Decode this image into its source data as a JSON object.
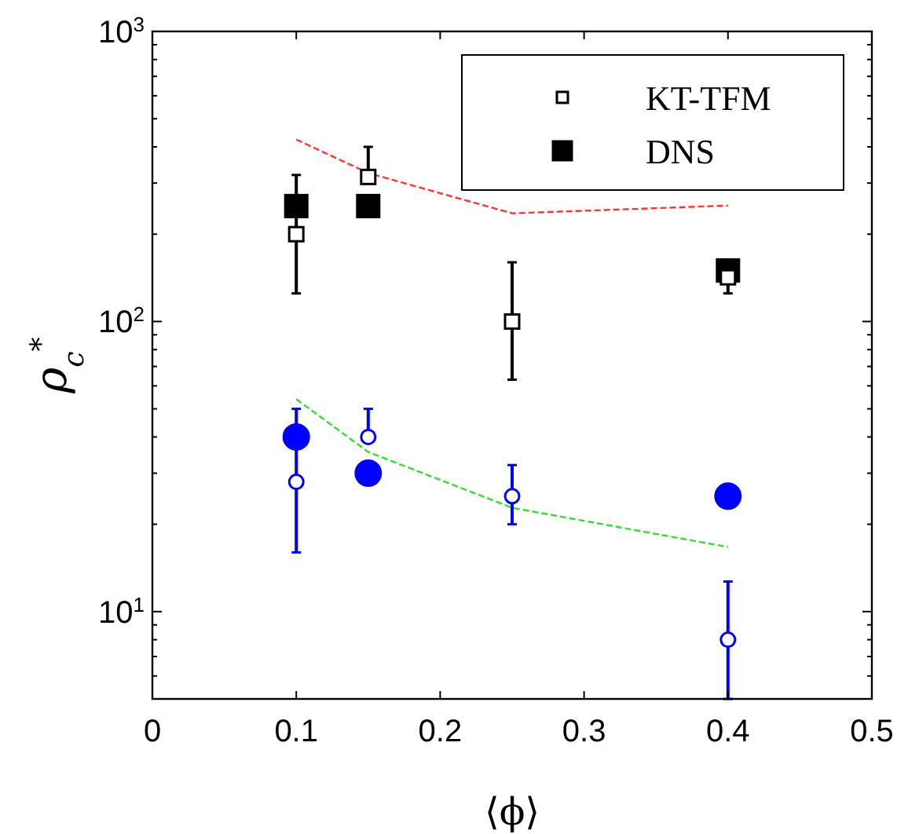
{
  "chart_data": {
    "type": "scatter",
    "xlabel": "⟨ϕ⟩",
    "ylabel": "ρ$_{c}$$^{*}$",
    "log": "y",
    "grid": false,
    "legend": "top right",
    "xlim": [
      0,
      0.5
    ],
    "xticks": [
      0,
      0.1,
      0.2,
      0.3,
      0.4,
      0.5
    ],
    "ylim": [
      5,
      1000
    ],
    "yticks": [
      {
        "value": 10,
        "label": "10$^{1}$"
      },
      {
        "value": 100,
        "label": "10$^{2}$"
      },
      {
        "value": 1000,
        "label": "10$^{3}$"
      },
      {
        "value": 6,
        "label": null
      },
      {
        "value": 7,
        "label": null
      },
      {
        "value": 8,
        "label": null
      },
      {
        "value": 9,
        "label": null
      },
      {
        "value": 20,
        "label": null
      },
      {
        "value": 30,
        "label": null
      },
      {
        "value": 40,
        "label": null
      },
      {
        "value": 50,
        "label": null
      },
      {
        "value": 60,
        "label": null
      },
      {
        "value": 70,
        "label": null
      },
      {
        "value": 80,
        "label": null
      },
      {
        "value": 90,
        "label": null
      },
      {
        "value": 200,
        "label": null
      },
      {
        "value": 300,
        "label": null
      },
      {
        "value": 400,
        "label": null
      },
      {
        "value": 500,
        "label": null
      },
      {
        "value": 600,
        "label": null
      },
      {
        "value": 700,
        "label": null
      },
      {
        "value": 800,
        "label": null
      },
      {
        "value": 900,
        "label": null
      }
    ],
    "x": [
      0.1,
      0.15,
      0.25,
      0.4
    ],
    "series": [
      {
        "type": "line",
        "color": "#ff3333",
        "line_style": "dashed",
        "marker": "none",
        "values": [
          424,
          325,
          236,
          251
        ]
      },
      {
        "type": "line",
        "color": "#33dd33",
        "line_style": "dashed",
        "marker": "none",
        "values": [
          54,
          35.5,
          22.8,
          16.7
        ]
      },
      {
        "name": "KT-TFM",
        "color": "#000000",
        "marker": "square",
        "values": [
          200,
          315,
          100,
          142
        ],
        "errors": [
          [
            125,
            320
          ],
          [
            315,
            400
          ],
          [
            63,
            160
          ],
          [
            125,
            142
          ]
        ]
      },
      {
        "name": "DNS",
        "color": "#000000",
        "marker": "square",
        "values": [
          250,
          250,
          null,
          150
        ]
      },
      {
        "color": "#0000ff",
        "marker": "circle",
        "values": [
          28,
          40,
          25,
          8
        ],
        "errors": [
          [
            16,
            50
          ],
          [
            40,
            50
          ],
          [
            20,
            32
          ],
          [
            5,
            12.7
          ]
        ]
      },
      {
        "color": "#0000ff",
        "marker": "circle",
        "values": [
          40,
          30,
          null,
          25
        ]
      }
    ]
  }
}
